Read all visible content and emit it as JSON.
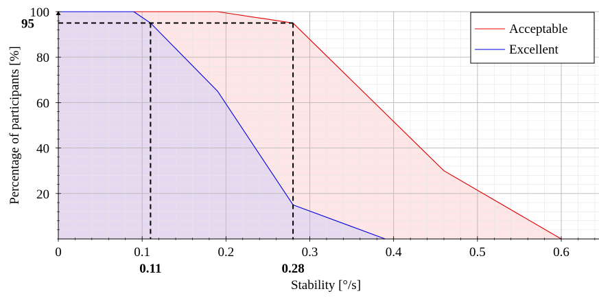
{
  "chart_data": {
    "type": "line",
    "title": "",
    "xlabel": "Stability [°/s]",
    "ylabel": "Percentage of participants [%]",
    "xlim": [
      0,
      0.645
    ],
    "ylim": [
      0,
      100
    ],
    "xticks": [
      0,
      0.1,
      0.2,
      0.3,
      0.4,
      0.5,
      0.6
    ],
    "xtick_labels": [
      "0",
      "0.1",
      "0.2",
      "0.3",
      "0.4",
      "0.5",
      "0.6"
    ],
    "yticks": [
      20,
      40,
      60,
      80,
      100
    ],
    "ytick_labels": [
      "20",
      "40",
      "60",
      "80",
      "100"
    ],
    "grid": true,
    "minor_grid": true,
    "legend_position": "top-right",
    "series": [
      {
        "name": "Acceptable",
        "color": "#e00000",
        "fill": "#ffe6e6",
        "x": [
          0,
          0.19,
          0.28,
          0.46,
          0.6
        ],
        "y": [
          100,
          100,
          95,
          30,
          0
        ]
      },
      {
        "name": "Excellent",
        "color": "#0000e0",
        "fill": "#e2d6f0",
        "x": [
          0,
          0.09,
          0.11,
          0.19,
          0.28,
          0.39,
          0.6
        ],
        "y": [
          100,
          100,
          95,
          65,
          15,
          0,
          0
        ]
      }
    ],
    "annotations": {
      "threshold_y": 95,
      "threshold_y_label": "95",
      "markers": [
        {
          "x": 0.11,
          "label": "0.11"
        },
        {
          "x": 0.28,
          "label": "0.28"
        }
      ]
    }
  }
}
